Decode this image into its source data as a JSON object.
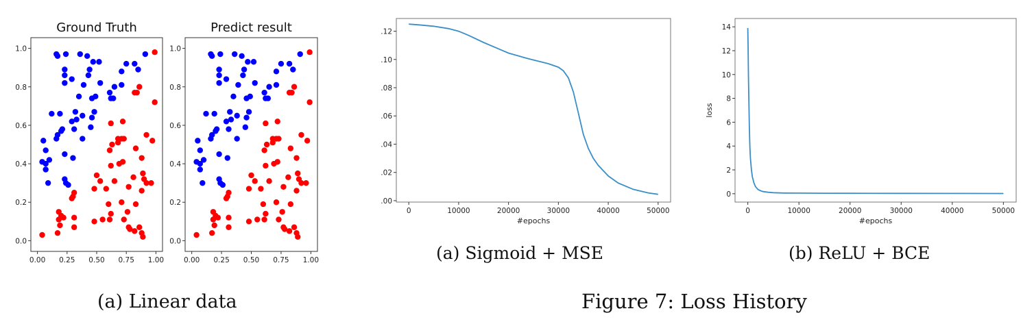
{
  "captions": {
    "linear": "(a) Linear data",
    "sigmoid": "(a) Sigmoid + MSE",
    "relu": "(b) ReLU + BCE",
    "figure": "Figure 7: Loss History"
  },
  "colors": {
    "blue": "#0000ff",
    "red": "#ff0000",
    "line": "#3a8ec8",
    "axis": "#333333"
  },
  "chart_data": [
    {
      "type": "scatter",
      "title": "Ground Truth",
      "xlim": [
        0,
        1
      ],
      "ylim": [
        0,
        1
      ],
      "xticks": [
        "0.00",
        "0.25",
        "0.50",
        "0.75",
        "1.00"
      ],
      "yticks": [
        "0.0",
        "0.2",
        "0.4",
        "0.6",
        "0.8",
        "1.0"
      ],
      "series": [
        {
          "color": "blue",
          "points": [
            [
              0.16,
              0.97
            ],
            [
              0.17,
              0.96
            ],
            [
              0.24,
              0.97
            ],
            [
              0.36,
              0.97
            ],
            [
              0.42,
              0.96
            ],
            [
              0.47,
              0.93
            ],
            [
              0.52,
              0.93
            ],
            [
              0.23,
              0.89
            ],
            [
              0.44,
              0.89
            ],
            [
              0.23,
              0.86
            ],
            [
              0.43,
              0.86
            ],
            [
              0.71,
              0.88
            ],
            [
              0.75,
              0.92
            ],
            [
              0.82,
              0.92
            ],
            [
              0.85,
              0.89
            ],
            [
              0.91,
              0.97
            ],
            [
              0.29,
              0.84
            ],
            [
              0.23,
              0.82
            ],
            [
              0.53,
              0.82
            ],
            [
              0.39,
              0.81
            ],
            [
              0.65,
              0.8
            ],
            [
              0.71,
              0.81
            ],
            [
              0.61,
              0.77
            ],
            [
              0.64,
              0.74
            ],
            [
              0.35,
              0.75
            ],
            [
              0.49,
              0.75
            ],
            [
              0.62,
              0.74
            ],
            [
              0.46,
              0.74
            ],
            [
              0.12,
              0.66
            ],
            [
              0.19,
              0.66
            ],
            [
              0.32,
              0.67
            ],
            [
              0.48,
              0.67
            ],
            [
              0.38,
              0.65
            ],
            [
              0.46,
              0.64
            ],
            [
              0.29,
              0.62
            ],
            [
              0.33,
              0.63
            ],
            [
              0.21,
              0.58
            ],
            [
              0.17,
              0.55
            ],
            [
              0.16,
              0.53
            ],
            [
              0.2,
              0.57
            ],
            [
              0.45,
              0.59
            ],
            [
              0.31,
              0.58
            ],
            [
              0.38,
              0.53
            ],
            [
              0.05,
              0.52
            ],
            [
              0.07,
              0.47
            ],
            [
              0.1,
              0.42
            ],
            [
              0.04,
              0.41
            ],
            [
              0.07,
              0.37
            ],
            [
              0.07,
              0.4
            ],
            [
              0.09,
              0.3
            ],
            [
              0.23,
              0.45
            ],
            [
              0.3,
              0.43
            ],
            [
              0.23,
              0.32
            ],
            [
              0.24,
              0.3
            ],
            [
              0.26,
              0.29
            ]
          ]
        },
        {
          "color": "red",
          "points": [
            [
              0.99,
              0.98
            ],
            [
              0.86,
              0.8
            ],
            [
              0.82,
              0.77
            ],
            [
              0.84,
              0.77
            ],
            [
              0.99,
              0.72
            ],
            [
              0.62,
              0.61
            ],
            [
              0.72,
              0.62
            ],
            [
              0.68,
              0.53
            ],
            [
              0.71,
              0.53
            ],
            [
              0.73,
              0.53
            ],
            [
              0.92,
              0.55
            ],
            [
              0.97,
              0.52
            ],
            [
              0.63,
              0.5
            ],
            [
              0.68,
              0.51
            ],
            [
              0.61,
              0.47
            ],
            [
              0.83,
              0.48
            ],
            [
              0.88,
              0.43
            ],
            [
              0.62,
              0.39
            ],
            [
              0.69,
              0.4
            ],
            [
              0.72,
              0.41
            ],
            [
              0.5,
              0.34
            ],
            [
              0.53,
              0.31
            ],
            [
              0.65,
              0.31
            ],
            [
              0.81,
              0.33
            ],
            [
              0.89,
              0.35
            ],
            [
              0.9,
              0.32
            ],
            [
              0.92,
              0.3
            ],
            [
              0.96,
              0.3
            ],
            [
              0.48,
              0.27
            ],
            [
              0.58,
              0.27
            ],
            [
              0.77,
              0.28
            ],
            [
              0.88,
              0.26
            ],
            [
              0.31,
              0.25
            ],
            [
              0.3,
              0.23
            ],
            [
              0.29,
              0.22
            ],
            [
              0.71,
              0.2
            ],
            [
              0.83,
              0.19
            ],
            [
              0.6,
              0.19
            ],
            [
              0.18,
              0.15
            ],
            [
              0.2,
              0.13
            ],
            [
              0.22,
              0.12
            ],
            [
              0.31,
              0.12
            ],
            [
              0.62,
              0.14
            ],
            [
              0.76,
              0.15
            ],
            [
              0.18,
              0.11
            ],
            [
              0.55,
              0.11
            ],
            [
              0.61,
              0.11
            ],
            [
              0.73,
              0.11
            ],
            [
              0.19,
              0.08
            ],
            [
              0.31,
              0.07
            ],
            [
              0.48,
              0.1
            ],
            [
              0.86,
              0.07
            ],
            [
              0.77,
              0.07
            ],
            [
              0.78,
              0.06
            ],
            [
              0.82,
              0.05
            ],
            [
              0.17,
              0.04
            ],
            [
              0.88,
              0.04
            ],
            [
              0.89,
              0.02
            ],
            [
              0.04,
              0.03
            ]
          ]
        }
      ]
    },
    {
      "type": "scatter",
      "title": "Predict result",
      "xlim": [
        0,
        1
      ],
      "ylim": [
        0,
        1
      ],
      "xticks": [
        "0.00",
        "0.25",
        "0.50",
        "0.75",
        "1.00"
      ],
      "yticks": [
        "0.0",
        "0.2",
        "0.4",
        "0.6",
        "0.8",
        "1.0"
      ],
      "series": [
        {
          "color": "blue",
          "points": [
            [
              0.16,
              0.97
            ],
            [
              0.17,
              0.96
            ],
            [
              0.24,
              0.97
            ],
            [
              0.36,
              0.97
            ],
            [
              0.42,
              0.96
            ],
            [
              0.47,
              0.93
            ],
            [
              0.52,
              0.93
            ],
            [
              0.23,
              0.89
            ],
            [
              0.44,
              0.89
            ],
            [
              0.23,
              0.86
            ],
            [
              0.43,
              0.86
            ],
            [
              0.71,
              0.88
            ],
            [
              0.75,
              0.92
            ],
            [
              0.82,
              0.92
            ],
            [
              0.85,
              0.89
            ],
            [
              0.91,
              0.97
            ],
            [
              0.29,
              0.84
            ],
            [
              0.23,
              0.82
            ],
            [
              0.53,
              0.82
            ],
            [
              0.39,
              0.81
            ],
            [
              0.65,
              0.8
            ],
            [
              0.71,
              0.81
            ],
            [
              0.61,
              0.77
            ],
            [
              0.64,
              0.74
            ],
            [
              0.35,
              0.75
            ],
            [
              0.49,
              0.75
            ],
            [
              0.62,
              0.74
            ],
            [
              0.46,
              0.74
            ],
            [
              0.12,
              0.66
            ],
            [
              0.19,
              0.66
            ],
            [
              0.32,
              0.67
            ],
            [
              0.48,
              0.67
            ],
            [
              0.38,
              0.65
            ],
            [
              0.46,
              0.64
            ],
            [
              0.29,
              0.62
            ],
            [
              0.33,
              0.63
            ],
            [
              0.21,
              0.58
            ],
            [
              0.17,
              0.55
            ],
            [
              0.16,
              0.53
            ],
            [
              0.2,
              0.57
            ],
            [
              0.45,
              0.59
            ],
            [
              0.31,
              0.58
            ],
            [
              0.38,
              0.53
            ],
            [
              0.05,
              0.52
            ],
            [
              0.07,
              0.47
            ],
            [
              0.1,
              0.42
            ],
            [
              0.04,
              0.41
            ],
            [
              0.07,
              0.37
            ],
            [
              0.07,
              0.4
            ],
            [
              0.09,
              0.3
            ],
            [
              0.23,
              0.45
            ],
            [
              0.3,
              0.43
            ],
            [
              0.23,
              0.32
            ],
            [
              0.24,
              0.3
            ],
            [
              0.26,
              0.29
            ]
          ]
        },
        {
          "color": "red",
          "points": [
            [
              0.99,
              0.98
            ],
            [
              0.86,
              0.8
            ],
            [
              0.82,
              0.77
            ],
            [
              0.84,
              0.77
            ],
            [
              0.99,
              0.72
            ],
            [
              0.62,
              0.61
            ],
            [
              0.72,
              0.62
            ],
            [
              0.68,
              0.53
            ],
            [
              0.71,
              0.53
            ],
            [
              0.73,
              0.53
            ],
            [
              0.92,
              0.55
            ],
            [
              0.97,
              0.52
            ],
            [
              0.63,
              0.5
            ],
            [
              0.68,
              0.51
            ],
            [
              0.61,
              0.47
            ],
            [
              0.83,
              0.48
            ],
            [
              0.88,
              0.43
            ],
            [
              0.62,
              0.39
            ],
            [
              0.69,
              0.4
            ],
            [
              0.72,
              0.41
            ],
            [
              0.5,
              0.34
            ],
            [
              0.53,
              0.31
            ],
            [
              0.65,
              0.31
            ],
            [
              0.81,
              0.33
            ],
            [
              0.89,
              0.35
            ],
            [
              0.9,
              0.32
            ],
            [
              0.92,
              0.3
            ],
            [
              0.96,
              0.3
            ],
            [
              0.48,
              0.27
            ],
            [
              0.58,
              0.27
            ],
            [
              0.77,
              0.28
            ],
            [
              0.88,
              0.26
            ],
            [
              0.31,
              0.25
            ],
            [
              0.3,
              0.23
            ],
            [
              0.29,
              0.22
            ],
            [
              0.71,
              0.2
            ],
            [
              0.83,
              0.19
            ],
            [
              0.6,
              0.19
            ],
            [
              0.18,
              0.15
            ],
            [
              0.2,
              0.13
            ],
            [
              0.22,
              0.12
            ],
            [
              0.31,
              0.12
            ],
            [
              0.62,
              0.14
            ],
            [
              0.76,
              0.15
            ],
            [
              0.18,
              0.11
            ],
            [
              0.55,
              0.11
            ],
            [
              0.61,
              0.11
            ],
            [
              0.73,
              0.11
            ],
            [
              0.19,
              0.08
            ],
            [
              0.31,
              0.07
            ],
            [
              0.48,
              0.1
            ],
            [
              0.86,
              0.07
            ],
            [
              0.77,
              0.07
            ],
            [
              0.78,
              0.06
            ],
            [
              0.82,
              0.05
            ],
            [
              0.17,
              0.04
            ],
            [
              0.88,
              0.04
            ],
            [
              0.89,
              0.02
            ],
            [
              0.04,
              0.03
            ]
          ]
        }
      ]
    },
    {
      "type": "line",
      "title": "",
      "xlabel": "#epochs",
      "ylabel": "",
      "xlim": [
        -2500,
        52500
      ],
      "ylim": [
        -0.001,
        0.129
      ],
      "xticks": [
        0,
        10000,
        20000,
        30000,
        40000,
        50000
      ],
      "xtick_labels": [
        "0",
        "10000",
        "20000",
        "30000",
        "40000",
        "50000"
      ],
      "yticks": [
        0.0,
        0.02,
        0.04,
        0.06,
        0.08,
        0.1,
        0.12
      ],
      "ytick_labels": [
        ".00",
        ".02",
        ".04",
        ".06",
        ".08",
        ".10",
        ".12"
      ],
      "x": [
        0,
        2000,
        5000,
        8000,
        10000,
        12000,
        15000,
        18000,
        20000,
        24000,
        28000,
        30000,
        31000,
        32000,
        33000,
        34000,
        35000,
        36000,
        37000,
        38000,
        40000,
        42000,
        45000,
        48000,
        50000
      ],
      "y": [
        0.125,
        0.1245,
        0.1235,
        0.1218,
        0.12,
        0.117,
        0.112,
        0.1075,
        0.1045,
        0.1005,
        0.097,
        0.0945,
        0.092,
        0.087,
        0.077,
        0.062,
        0.047,
        0.037,
        0.03,
        0.025,
        0.0175,
        0.0125,
        0.008,
        0.0055,
        0.0045
      ]
    },
    {
      "type": "line",
      "title": "",
      "xlabel": "#epochs",
      "ylabel": "loss",
      "xlim": [
        -2500,
        52500
      ],
      "ylim": [
        -0.7,
        14.7
      ],
      "xticks": [
        0,
        10000,
        20000,
        30000,
        40000,
        50000
      ],
      "xtick_labels": [
        "0",
        "10000",
        "20000",
        "30000",
        "40000",
        "50000"
      ],
      "yticks": [
        0,
        2,
        4,
        6,
        8,
        10,
        12,
        14
      ],
      "ytick_labels": [
        "0",
        "2",
        "4",
        "6",
        "8",
        "10",
        "12",
        "14"
      ],
      "x": [
        0,
        50,
        120,
        200,
        300,
        400,
        500,
        700,
        900,
        1200,
        1500,
        2000,
        2500,
        3000,
        4000,
        5000,
        7000,
        10000,
        15000,
        20000,
        30000,
        40000,
        50000
      ],
      "y": [
        13.9,
        12.5,
        10.0,
        8.0,
        5.5,
        4.0,
        3.0,
        2.0,
        1.4,
        0.9,
        0.6,
        0.35,
        0.25,
        0.18,
        0.12,
        0.09,
        0.06,
        0.05,
        0.04,
        0.035,
        0.03,
        0.025,
        0.02
      ]
    }
  ]
}
